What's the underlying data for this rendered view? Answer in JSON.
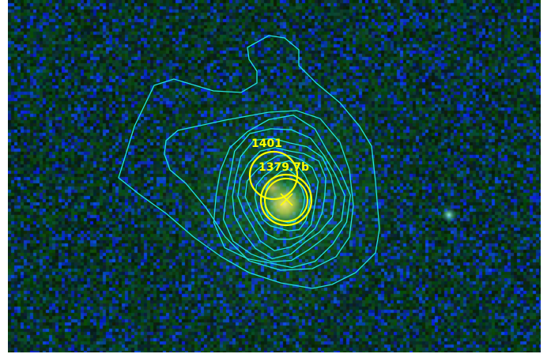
{
  "image": {
    "kind": "false-color astronomical image with contour overlay",
    "colors": {
      "background_green": "#0a3a14",
      "noise_blue": "#1030d0",
      "contour": "#22e0e0",
      "marker": "#ffff00",
      "source_core": "#f2e060"
    }
  },
  "labels": {
    "source_a": "1401",
    "source_b": "1379.7b"
  }
}
